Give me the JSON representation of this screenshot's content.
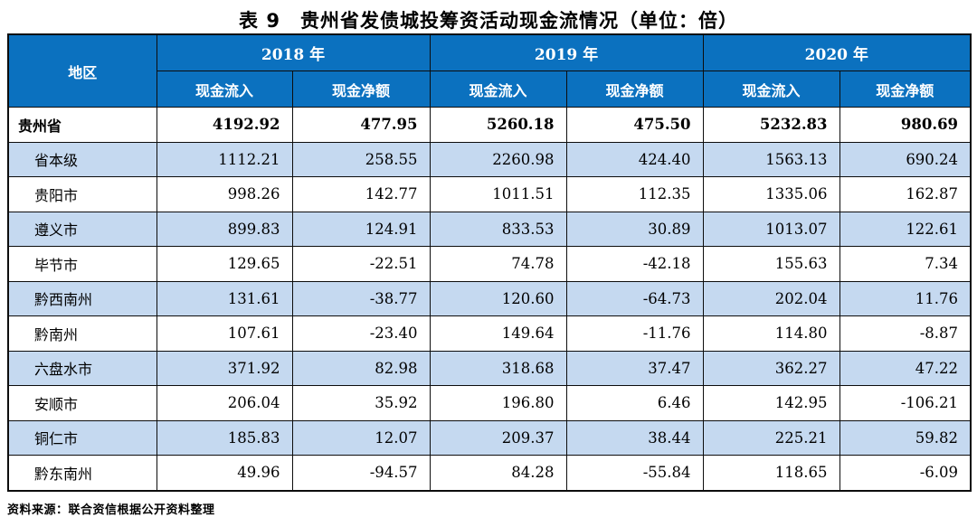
{
  "title": "表 9　贵州省发债城投筹资活动现金流情况（单位：倍）",
  "source_note": "资料来源：联合资信根据公开资料整理",
  "colors": {
    "header_bg": "#0B71BF",
    "header_text": "#FFFFFF",
    "alt_row_bg": "#C5D9F0",
    "border": "#0D0D0D",
    "body_text": "#000000"
  },
  "table": {
    "region_header": "地区",
    "year_groups": [
      {
        "year": "2018 年"
      },
      {
        "year": "2019 年"
      },
      {
        "year": "2020 年"
      }
    ],
    "sub_headers": [
      "现金流入",
      "现金净额",
      "现金流入",
      "现金净额",
      "现金流入",
      "现金净额"
    ],
    "rows": [
      {
        "region": "贵州省",
        "total": true,
        "indent": false,
        "values": [
          "4192.92",
          "477.95",
          "5260.18",
          "475.50",
          "5232.83",
          "980.69"
        ]
      },
      {
        "region": "省本级",
        "total": false,
        "indent": true,
        "values": [
          "1112.21",
          "258.55",
          "2260.98",
          "424.40",
          "1563.13",
          "690.24"
        ]
      },
      {
        "region": "贵阳市",
        "total": false,
        "indent": true,
        "values": [
          "998.26",
          "142.77",
          "1011.51",
          "112.35",
          "1335.06",
          "162.87"
        ]
      },
      {
        "region": "遵义市",
        "total": false,
        "indent": true,
        "values": [
          "899.83",
          "124.91",
          "833.53",
          "30.89",
          "1013.07",
          "122.61"
        ]
      },
      {
        "region": "毕节市",
        "total": false,
        "indent": true,
        "values": [
          "129.65",
          "-22.51",
          "74.78",
          "-42.18",
          "155.63",
          "7.34"
        ]
      },
      {
        "region": "黔西南州",
        "total": false,
        "indent": true,
        "values": [
          "131.61",
          "-38.77",
          "120.60",
          "-64.73",
          "202.04",
          "11.76"
        ]
      },
      {
        "region": "黔南州",
        "total": false,
        "indent": true,
        "values": [
          "107.61",
          "-23.40",
          "149.64",
          "-11.76",
          "114.80",
          "-8.87"
        ]
      },
      {
        "region": "六盘水市",
        "total": false,
        "indent": true,
        "values": [
          "371.92",
          "82.98",
          "318.68",
          "37.47",
          "362.27",
          "47.22"
        ]
      },
      {
        "region": "安顺市",
        "total": false,
        "indent": true,
        "values": [
          "206.04",
          "35.92",
          "196.80",
          "6.46",
          "142.95",
          "-106.21"
        ]
      },
      {
        "region": "铜仁市",
        "total": false,
        "indent": true,
        "values": [
          "185.83",
          "12.07",
          "209.37",
          "38.44",
          "225.21",
          "59.82"
        ]
      },
      {
        "region": "黔东南州",
        "total": false,
        "indent": true,
        "values": [
          "49.96",
          "-94.57",
          "84.28",
          "-55.84",
          "118.65",
          "-6.09"
        ]
      }
    ]
  }
}
